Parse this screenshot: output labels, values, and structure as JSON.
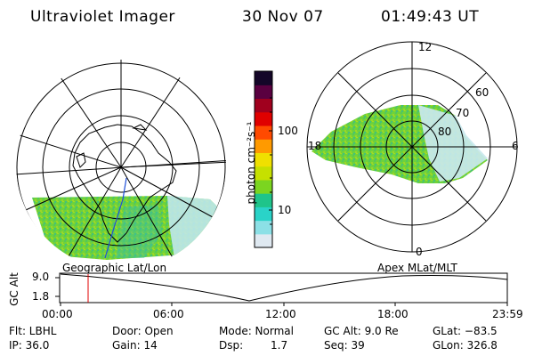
{
  "header": {
    "instrument": "Ultraviolet Imager",
    "date": "30 Nov 07",
    "time": "01:49:43 UT"
  },
  "left_panel": {
    "caption": "Geographic Lat/Lon"
  },
  "right_panel": {
    "caption": "Apex MLat/MLT",
    "mlt_labels": {
      "top": "12",
      "left": "18",
      "right": "6",
      "bottom": "0"
    },
    "lat_labels": [
      "60",
      "70",
      "80"
    ]
  },
  "colorbar": {
    "units": "photon cm⁻²s⁻¹",
    "ticks": [
      "100",
      "10"
    ],
    "scale": "log",
    "colors": [
      "#dfe9f1",
      "#8ce0e6",
      "#2ad3c8",
      "#1fc48a",
      "#7bd520",
      "#c6e000",
      "#f0e000",
      "#ff9a00",
      "#ff4a00",
      "#e00000",
      "#a0001e",
      "#5a0040",
      "#140628"
    ]
  },
  "timeline": {
    "ylabel": "GC Alt",
    "ticks_y": [
      "9.0",
      "1.8"
    ],
    "ticks_x": [
      "00:00",
      "06:00",
      "12:00",
      "18:00",
      "23:59"
    ],
    "marker_time": "01:49:43",
    "marker_color": "#e00000"
  },
  "info": {
    "flt": "Flt: LBHL",
    "ip": "IP: 36.0",
    "door": "Door: Open",
    "gain": "Gain: 14",
    "mode": "Mode: Normal",
    "dsp_label": "Dsp:",
    "dsp_value": "1.7",
    "gcalt": "GC Alt: 9.0 Re",
    "seq": "Seq: 39",
    "glat": "GLat: −83.5",
    "glon": "GLon: 326.8"
  }
}
